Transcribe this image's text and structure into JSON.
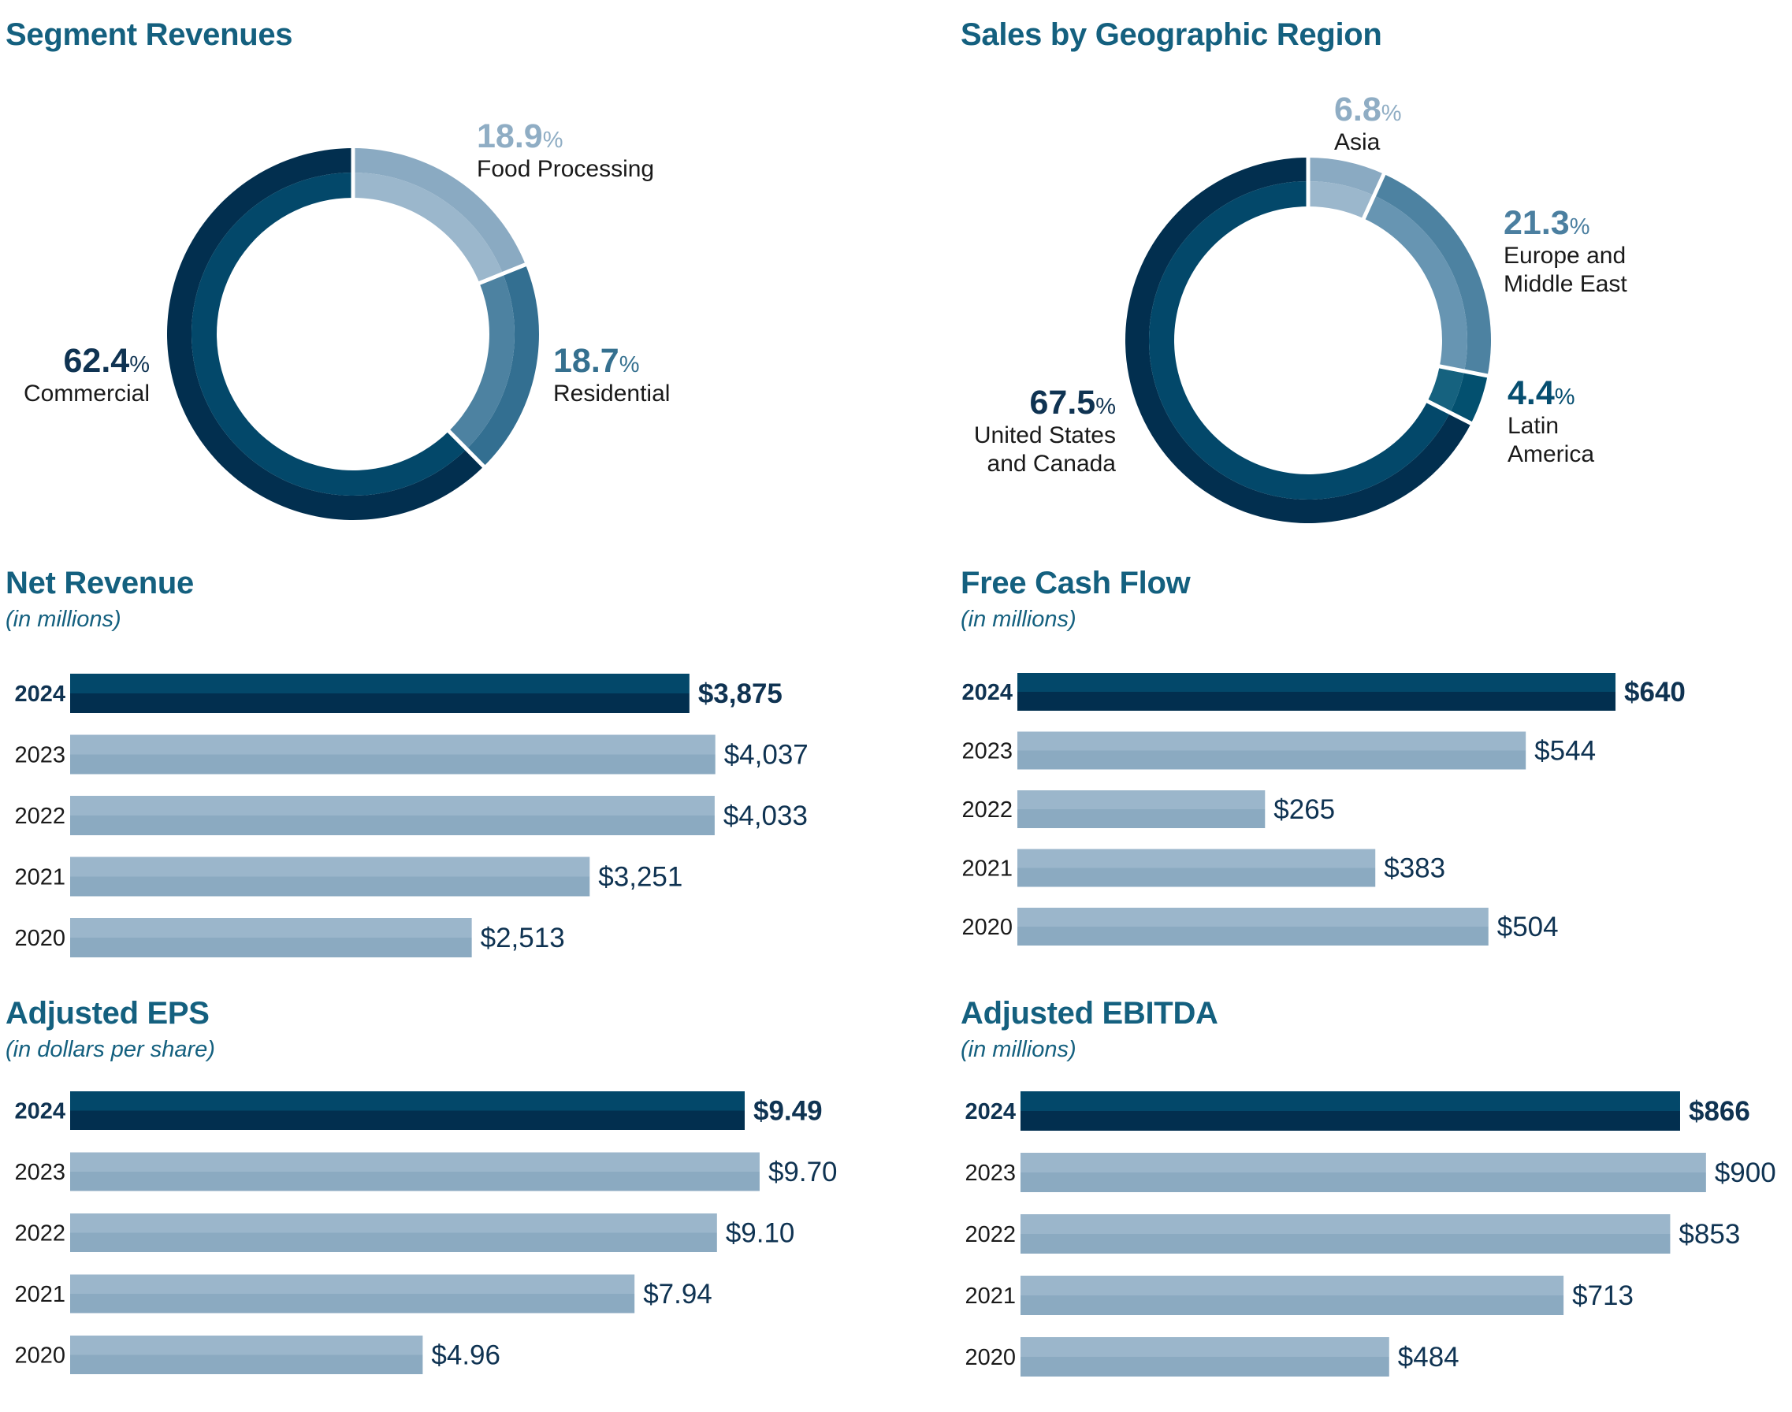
{
  "colors": {
    "title": "#14607f",
    "highlight_outer": "#022f4f",
    "highlight_inner": "#03486a",
    "bar_light_top": "#9bb6cb",
    "bar_light_bottom": "#8baac1",
    "value_text": "#0f3352"
  },
  "chart_data": [
    {
      "id": "segment-revenues",
      "type": "pie",
      "title": "Segment Revenues",
      "unit": "%",
      "slices": [
        {
          "label": "Food Processing",
          "value": 18.9,
          "display": "18.9",
          "color_outer": "#8aaac2",
          "color_inner": "#9bb7cc",
          "label_color": "#8fadc4"
        },
        {
          "label": "Residential",
          "value": 18.7,
          "display": "18.7",
          "color_outer": "#336f91",
          "color_inner": "#4d82a1",
          "label_color": "#35708f"
        },
        {
          "label": "Commercial",
          "value": 62.4,
          "display": "62.4",
          "color_outer": "#022f4f",
          "color_inner": "#03486a",
          "label_color": "#0f3352"
        }
      ]
    },
    {
      "id": "sales-by-region",
      "type": "pie",
      "title": "Sales by Geographic Region",
      "unit": "%",
      "slices": [
        {
          "label": "Asia",
          "value": 6.8,
          "display": "6.8",
          "label_lines": [
            "Asia"
          ],
          "color_outer": "#8aaac2",
          "color_inner": "#9bb7cc",
          "label_color": "#8fadc4"
        },
        {
          "label": "Europe and Middle East",
          "value": 21.3,
          "display": "21.3",
          "label_lines": [
            "Europe and",
            "Middle East"
          ],
          "color_outer": "#4d82a1",
          "color_inner": "#6795b2",
          "label_color": "#4b7fa0"
        },
        {
          "label": "Latin America",
          "value": 4.4,
          "display": "4.4",
          "label_lines": [
            "Latin",
            "America"
          ],
          "color_outer": "#03506f",
          "color_inner": "#16627f",
          "label_color": "#064e70"
        },
        {
          "label": "United States and Canada",
          "value": 67.5,
          "display": "67.5",
          "label_lines": [
            "United States",
            "and Canada"
          ],
          "color_outer": "#022f4f",
          "color_inner": "#03486a",
          "label_color": "#0f3352"
        }
      ]
    },
    {
      "id": "net-revenue",
      "type": "bar",
      "orientation": "horizontal",
      "title": "Net Revenue",
      "subtitle": "(in millions)",
      "categories": [
        "2024",
        "2023",
        "2022",
        "2021",
        "2020"
      ],
      "values": [
        3875,
        4037,
        4033,
        3251,
        2513
      ],
      "labels": [
        "$3,875",
        "$4,037",
        "$4,033",
        "$3,251",
        "$2,513"
      ],
      "highlight": "2024"
    },
    {
      "id": "free-cash-flow",
      "type": "bar",
      "orientation": "horizontal",
      "title": "Free Cash Flow",
      "subtitle": "(in millions)",
      "categories": [
        "2024",
        "2023",
        "2022",
        "2021",
        "2020"
      ],
      "values": [
        640,
        544,
        265,
        383,
        504
      ],
      "labels": [
        "$640",
        "$544",
        "$265",
        "$383",
        "$504"
      ],
      "highlight": "2024"
    },
    {
      "id": "adjusted-eps",
      "type": "bar",
      "orientation": "horizontal",
      "title": "Adjusted EPS",
      "subtitle": "(in dollars per share)",
      "categories": [
        "2024",
        "2023",
        "2022",
        "2021",
        "2020"
      ],
      "values": [
        9.49,
        9.7,
        9.1,
        7.94,
        4.96
      ],
      "labels": [
        "$9.49",
        "$9.70",
        "$9.10",
        "$7.94",
        "$4.96"
      ],
      "highlight": "2024"
    },
    {
      "id": "adjusted-ebitda",
      "type": "bar",
      "orientation": "horizontal",
      "title": "Adjusted EBITDA",
      "subtitle": "(in millions)",
      "categories": [
        "2024",
        "2023",
        "2022",
        "2021",
        "2020"
      ],
      "values": [
        866,
        900,
        853,
        713,
        484
      ],
      "labels": [
        "$866",
        "$900",
        "$853",
        "$713",
        "$484"
      ],
      "highlight": "2024"
    }
  ]
}
